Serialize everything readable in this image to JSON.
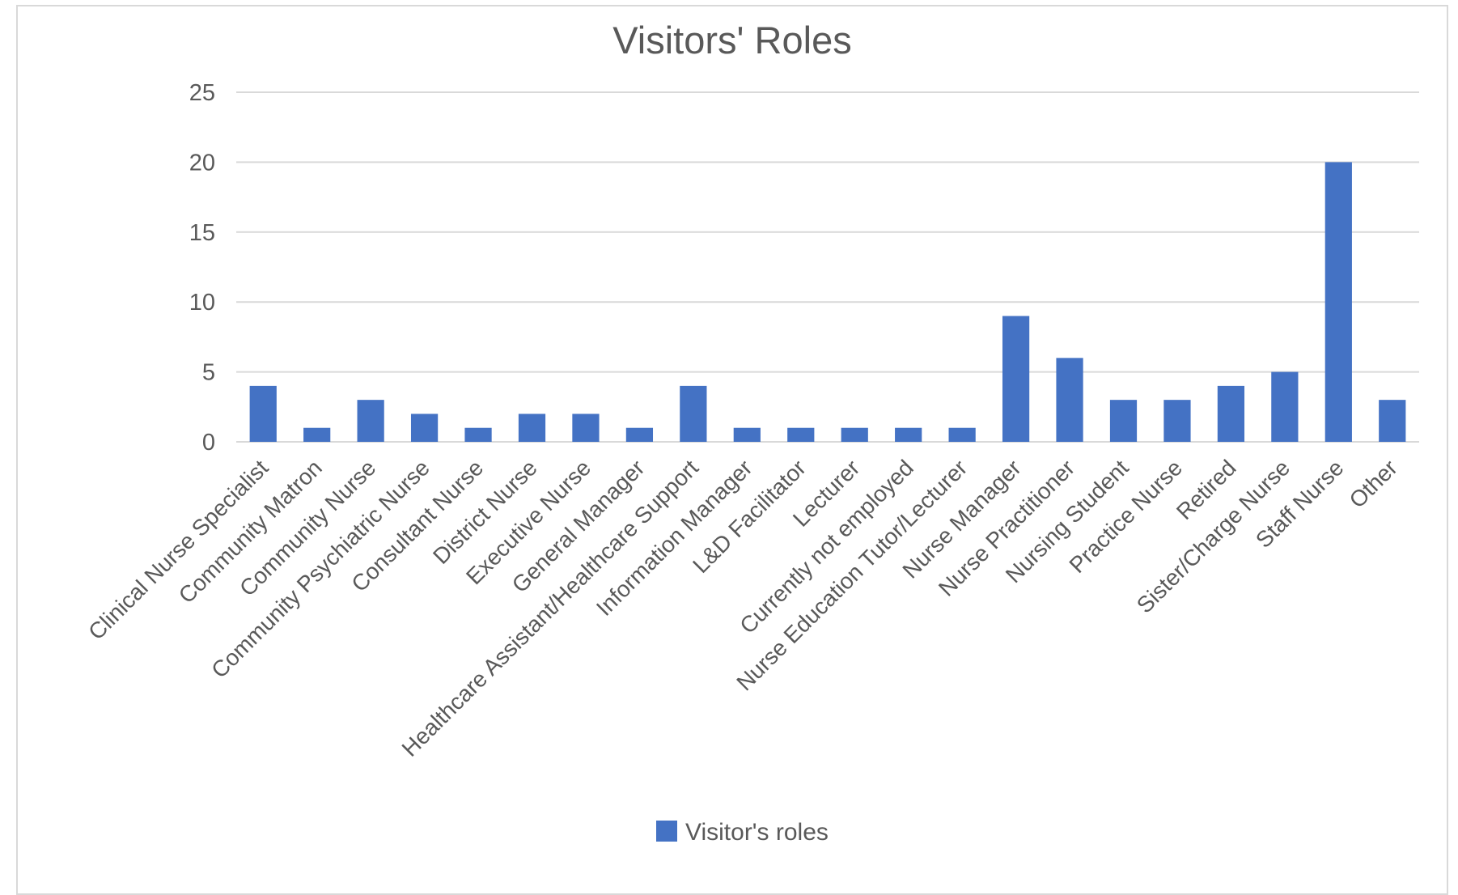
{
  "chart_data": {
    "type": "bar",
    "title": "Visitors' Roles",
    "categories": [
      "Clinical Nurse Specialist",
      "Community Matron",
      "Community Nurse",
      "Community Psychiatric Nurse",
      "Consultant Nurse",
      "District Nurse",
      "Executive Nurse",
      "General Manager",
      "Healthcare Assistant/Healthcare Support",
      "Information Manager",
      "L&D Facilitator",
      "Lecturer",
      "Currently not employed",
      "Nurse Education Tutor/Lecturer",
      "Nurse Manager",
      "Nurse Practitioner",
      "Nursing Student",
      "Practice Nurse",
      "Retired",
      "Sister/Charge Nurse",
      "Staff Nurse",
      "Other"
    ],
    "series": [
      {
        "name": "Visitor's roles",
        "color": "#4472c4",
        "values": [
          4,
          1,
          3,
          2,
          1,
          2,
          2,
          1,
          4,
          1,
          1,
          1,
          1,
          1,
          9,
          6,
          3,
          3,
          4,
          5,
          20,
          3
        ]
      }
    ],
    "ylim": [
      0,
      25
    ],
    "yticks": [
      "0",
      "5",
      "10",
      "15",
      "20",
      "25"
    ],
    "grid": true,
    "legend_position": "bottom",
    "colors": {
      "bar": "#4472c4",
      "gridline": "#d9d9d9",
      "text": "#595959",
      "frame": "#d9d9d9"
    }
  }
}
